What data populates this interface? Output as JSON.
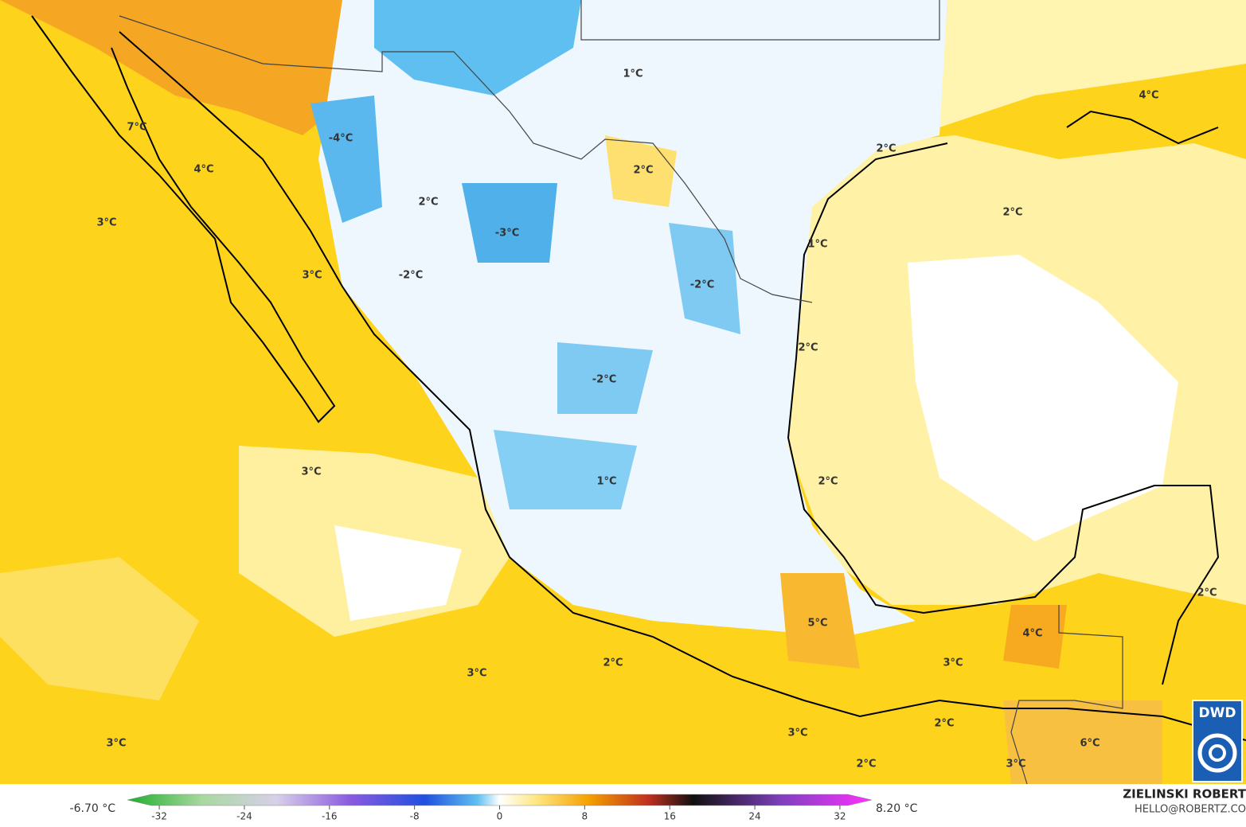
{
  "map_labels": [
    "1°C",
    "4°C",
    "7°C",
    "-4°C",
    "4°C",
    "2°C",
    "2°C",
    "2°C",
    "3°C",
    "2°C",
    "-3°C",
    "1°C",
    "3°C",
    "-2°C",
    "-2°C",
    "2°C",
    "-2°C",
    "3°C",
    "2°C",
    "1°C",
    "2°C",
    "5°C",
    "4°C",
    "2°C",
    "3°C",
    "3°C",
    "2°C",
    "3°C",
    "6°C",
    "3°C",
    "2°C",
    "3°C"
  ],
  "colorbar": {
    "lim": [
      -35,
      35
    ],
    "ticks": [
      -32,
      -24,
      -16,
      -8,
      0,
      8,
      16,
      24,
      32
    ],
    "min_label": "-6.70 °C",
    "max_label": "8.20 °C"
  },
  "credit": {
    "author": "ZIELINSKI ROBERT",
    "contact": "HELLO@ROBERTZ.CO"
  },
  "logo": "DWD"
}
